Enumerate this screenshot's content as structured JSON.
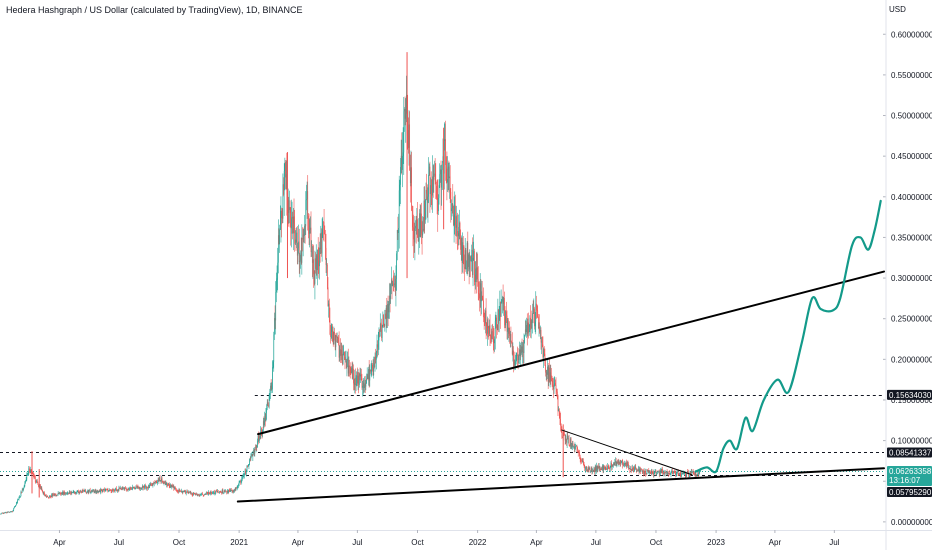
{
  "header": {
    "title": "Hedera Hashgraph / US Dollar (calculated by TradingView), 1D, BINANCE"
  },
  "colors": {
    "up": "#26a69a",
    "down": "#ef5350",
    "projection": "#139a8a",
    "trendline": "#000000",
    "price_label_bg": "#131722",
    "current_label_bg": "#26a69a"
  },
  "chart_data": {
    "type": "candlestick",
    "symbol": "HBAR/USD",
    "interval": "1D",
    "y_unit": "USD",
    "ylim": [
      -0.01,
      0.62
    ],
    "y_ticks": [
      {
        "value": 0.0,
        "label": "0.00000000"
      },
      {
        "value": 0.05,
        "label": "0.05000000"
      },
      {
        "value": 0.1,
        "label": "0.10000000"
      },
      {
        "value": 0.15,
        "label": "0.15000000"
      },
      {
        "value": 0.2,
        "label": "0.20000000"
      },
      {
        "value": 0.25,
        "label": "0.25000000"
      },
      {
        "value": 0.3,
        "label": "0.30000000"
      },
      {
        "value": 0.35,
        "label": "0.35000000"
      },
      {
        "value": 0.4,
        "label": "0.40000000"
      },
      {
        "value": 0.45,
        "label": "0.45000000"
      },
      {
        "value": 0.5,
        "label": "0.50000000"
      },
      {
        "value": 0.55,
        "label": "0.55000000"
      },
      {
        "value": 0.6,
        "label": "0.60000000"
      }
    ],
    "x_range": [
      "2020-01-01",
      "2023-09-15"
    ],
    "x_ticks": [
      {
        "date": "2020-04-01",
        "label": "Apr"
      },
      {
        "date": "2020-07-01",
        "label": "Jul"
      },
      {
        "date": "2020-10-01",
        "label": "Oct"
      },
      {
        "date": "2021-01-01",
        "label": "2021"
      },
      {
        "date": "2021-04-01",
        "label": "Apr"
      },
      {
        "date": "2021-07-01",
        "label": "Jul"
      },
      {
        "date": "2021-10-01",
        "label": "Oct"
      },
      {
        "date": "2022-01-01",
        "label": "2022"
      },
      {
        "date": "2022-04-01",
        "label": "Apr"
      },
      {
        "date": "2022-07-01",
        "label": "Jul"
      },
      {
        "date": "2022-10-01",
        "label": "Oct"
      },
      {
        "date": "2023-01-01",
        "label": "2023"
      },
      {
        "date": "2023-04-01",
        "label": "Apr"
      },
      {
        "date": "2023-07-01",
        "label": "Jul"
      }
    ],
    "price_path": [
      [
        "2020-01-01",
        0.01
      ],
      [
        "2020-01-20",
        0.013
      ],
      [
        "2020-02-05",
        0.04
      ],
      [
        "2020-02-15",
        0.065
      ],
      [
        "2020-02-25",
        0.05
      ],
      [
        "2020-03-12",
        0.03
      ],
      [
        "2020-04-01",
        0.035
      ],
      [
        "2020-05-01",
        0.037
      ],
      [
        "2020-06-01",
        0.038
      ],
      [
        "2020-07-01",
        0.04
      ],
      [
        "2020-08-15",
        0.043
      ],
      [
        "2020-09-01",
        0.052
      ],
      [
        "2020-10-01",
        0.038
      ],
      [
        "2020-11-01",
        0.033
      ],
      [
        "2020-12-01",
        0.037
      ],
      [
        "2020-12-25",
        0.038
      ],
      [
        "2021-01-10",
        0.06
      ],
      [
        "2021-01-25",
        0.09
      ],
      [
        "2021-02-08",
        0.12
      ],
      [
        "2021-02-20",
        0.17
      ],
      [
        "2021-03-01",
        0.33
      ],
      [
        "2021-03-12",
        0.42
      ],
      [
        "2021-03-22",
        0.37
      ],
      [
        "2021-04-05",
        0.33
      ],
      [
        "2021-04-15",
        0.4
      ],
      [
        "2021-04-25",
        0.3
      ],
      [
        "2021-05-10",
        0.36
      ],
      [
        "2021-05-20",
        0.24
      ],
      [
        "2021-06-05",
        0.21
      ],
      [
        "2021-06-22",
        0.18
      ],
      [
        "2021-07-10",
        0.17
      ],
      [
        "2021-07-25",
        0.19
      ],
      [
        "2021-08-10",
        0.25
      ],
      [
        "2021-08-28",
        0.3
      ],
      [
        "2021-09-08",
        0.47
      ],
      [
        "2021-09-15",
        0.52
      ],
      [
        "2021-09-25",
        0.35
      ],
      [
        "2021-10-10",
        0.37
      ],
      [
        "2021-10-20",
        0.42
      ],
      [
        "2021-11-01",
        0.4
      ],
      [
        "2021-11-12",
        0.45
      ],
      [
        "2021-11-25",
        0.38
      ],
      [
        "2021-12-10",
        0.33
      ],
      [
        "2021-12-25",
        0.32
      ],
      [
        "2022-01-05",
        0.28
      ],
      [
        "2022-01-22",
        0.22
      ],
      [
        "2022-02-08",
        0.27
      ],
      [
        "2022-02-25",
        0.2
      ],
      [
        "2022-03-10",
        0.215
      ],
      [
        "2022-03-25",
        0.25
      ],
      [
        "2022-04-02",
        0.258
      ],
      [
        "2022-04-15",
        0.19
      ],
      [
        "2022-05-01",
        0.16
      ],
      [
        "2022-05-10",
        0.11
      ],
      [
        "2022-05-20",
        0.1
      ],
      [
        "2022-06-01",
        0.09
      ],
      [
        "2022-06-15",
        0.065
      ],
      [
        "2022-07-01",
        0.065
      ],
      [
        "2022-07-20",
        0.068
      ],
      [
        "2022-08-10",
        0.075
      ],
      [
        "2022-08-25",
        0.066
      ],
      [
        "2022-09-10",
        0.063
      ],
      [
        "2022-09-25",
        0.06
      ],
      [
        "2022-10-10",
        0.062
      ],
      [
        "2022-10-25",
        0.061
      ],
      [
        "2022-11-08",
        0.058
      ],
      [
        "2022-11-25",
        0.059
      ],
      [
        "2022-12-08",
        0.06
      ]
    ],
    "spikes": [
      {
        "date": "2020-02-19",
        "high": 0.087,
        "low": 0.035
      },
      {
        "date": "2020-03-01",
        "high": 0.065,
        "low": 0.03
      },
      {
        "date": "2021-03-16",
        "high": 0.455,
        "low": 0.3
      },
      {
        "date": "2021-09-15",
        "high": 0.578,
        "low": 0.3
      },
      {
        "date": "2021-11-10",
        "high": 0.485,
        "low": 0.36
      },
      {
        "date": "2022-05-12",
        "high": 0.12,
        "low": 0.055
      }
    ],
    "projection_path": [
      [
        "2022-12-01",
        0.062
      ],
      [
        "2022-12-18",
        0.067
      ],
      [
        "2023-01-01",
        0.062
      ],
      [
        "2023-01-12",
        0.09
      ],
      [
        "2023-01-22",
        0.1
      ],
      [
        "2023-02-02",
        0.09
      ],
      [
        "2023-02-15",
        0.128
      ],
      [
        "2023-02-26",
        0.112
      ],
      [
        "2023-03-15",
        0.15
      ],
      [
        "2023-04-05",
        0.175
      ],
      [
        "2023-04-22",
        0.16
      ],
      [
        "2023-05-12",
        0.22
      ],
      [
        "2023-05-28",
        0.275
      ],
      [
        "2023-06-10",
        0.262
      ],
      [
        "2023-06-28",
        0.26
      ],
      [
        "2023-07-10",
        0.275
      ],
      [
        "2023-07-28",
        0.34
      ],
      [
        "2023-08-10",
        0.35
      ],
      [
        "2023-08-22",
        0.335
      ],
      [
        "2023-09-01",
        0.36
      ],
      [
        "2023-09-10",
        0.395
      ]
    ],
    "trendlines": [
      {
        "from": [
          "2020-12-30",
          0.025
        ],
        "to": [
          "2023-09-15",
          0.066
        ],
        "width": 2
      },
      {
        "from": [
          "2021-01-30",
          0.108
        ],
        "to": [
          "2023-09-15",
          0.308
        ],
        "width": 2
      },
      {
        "from": [
          "2022-05-10",
          0.113
        ],
        "to": [
          "2022-11-25",
          0.058
        ],
        "width": 1
      }
    ],
    "horizontal_levels": [
      {
        "value": 0.1563403,
        "label": "0.15634030",
        "from": "2021-01-25"
      },
      {
        "value": 0.08541337,
        "label": "0.08541337",
        "from": "2020-01-01"
      },
      {
        "value": 0.06263358,
        "label": "0.06263358",
        "from": "2020-01-01",
        "current": true,
        "sub_label": "13:16:07"
      },
      {
        "value": 0.0579529,
        "label": "0.05795290",
        "from": "2020-01-01"
      }
    ]
  }
}
